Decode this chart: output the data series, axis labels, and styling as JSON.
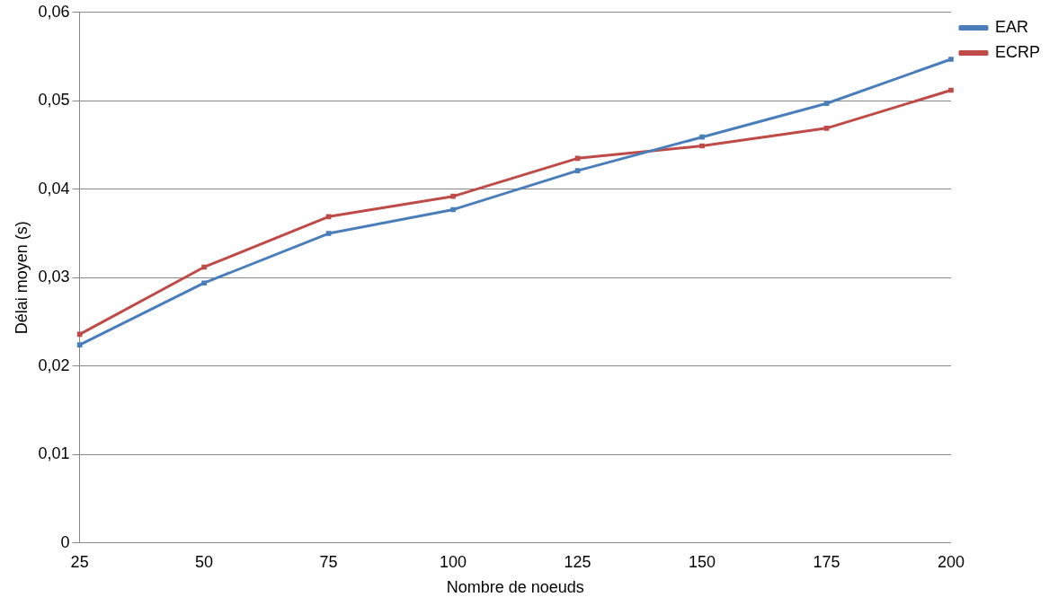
{
  "chart_data": {
    "type": "line",
    "xlabel": "Nombre de noeuds",
    "ylabel": "Délai moyen (s)",
    "categories": [
      "25",
      "50",
      "75",
      "100",
      "125",
      "150",
      "175",
      "200"
    ],
    "series": [
      {
        "name": "EAR",
        "color": "#4a7ebb",
        "values": [
          0.0224,
          0.0294,
          0.035,
          0.0377,
          0.0421,
          0.0459,
          0.0497,
          0.0547
        ]
      },
      {
        "name": "ECRP",
        "color": "#be4b48",
        "values": [
          0.0236,
          0.0312,
          0.0369,
          0.0392,
          0.0435,
          0.0449,
          0.0469,
          0.0512
        ]
      }
    ],
    "ylim": [
      0,
      0.06
    ],
    "yticks": [
      {
        "value": 0,
        "label": "0"
      },
      {
        "value": 0.01,
        "label": "0,01"
      },
      {
        "value": 0.02,
        "label": "0,02"
      },
      {
        "value": 0.03,
        "label": "0,03"
      },
      {
        "value": 0.04,
        "label": "0,04"
      },
      {
        "value": 0.05,
        "label": "0,05"
      },
      {
        "value": 0.06,
        "label": "0,06"
      }
    ],
    "grid": "y",
    "legend": "top right",
    "marker": "square",
    "line_style": "solid"
  }
}
